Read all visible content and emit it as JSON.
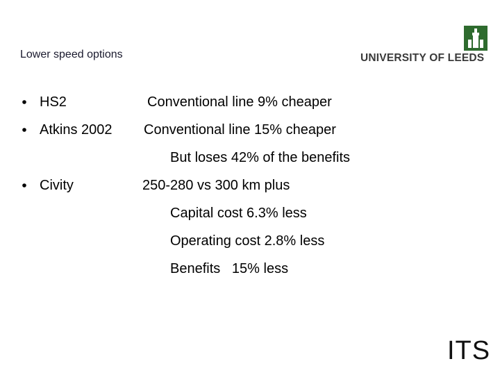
{
  "header": {
    "title": "Lower speed options",
    "logo": "UNIVERSITY OF LEEDS"
  },
  "items": [
    {
      "label": "HS2",
      "notes": [
        "Conventional line 9% cheaper"
      ]
    },
    {
      "label": "Atkins 2002",
      "notes": [
        "Conventional line 15% cheaper",
        "But loses 42% of the benefits"
      ]
    },
    {
      "label": "Civity",
      "notes": [
        "250-280 vs 300 km plus",
        "Capital cost 6.3% less",
        "Operating cost 2.8% less",
        "Benefits   15% less"
      ]
    }
  ],
  "footer": {
    "logo": "ITS"
  }
}
